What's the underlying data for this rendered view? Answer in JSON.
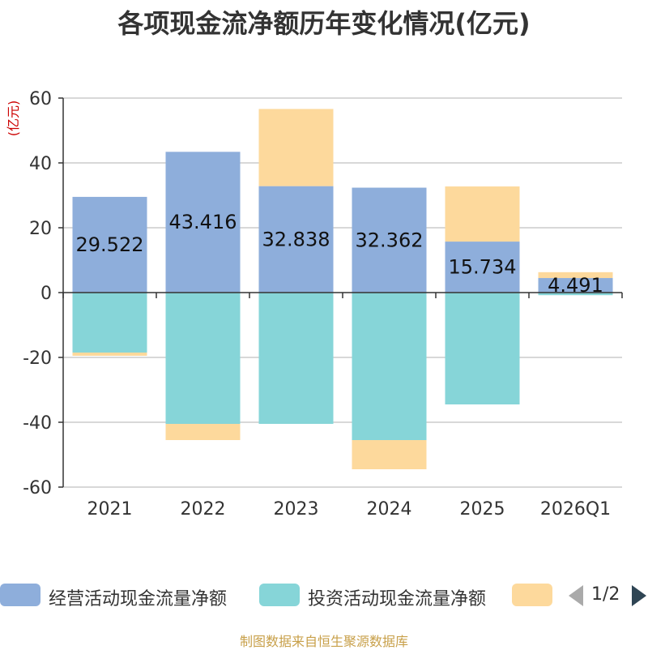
{
  "title": "各项现金流净额历年变化情况(亿元)",
  "source": "制图数据来自恒生聚源数据库",
  "colors": {
    "operating": "#8eaedb",
    "investing": "#86d5d8",
    "financing": "#fdd99c",
    "grid": "#cccccc",
    "axis": "#333333",
    "unit_label": "#cc0000"
  },
  "legend": {
    "items": [
      {
        "label": "经营活动现金流量净额",
        "color": "#8eaedb"
      },
      {
        "label": "投资活动现金流量净额",
        "color": "#86d5d8"
      },
      {
        "label": "",
        "color": "#fdd99c"
      }
    ],
    "pager": "1/2",
    "prev_icon": "triangle-left-icon",
    "next_icon": "triangle-right-icon"
  },
  "chart_data": {
    "type": "bar",
    "stacked": true,
    "title": "各项现金流净额历年变化情况(亿元)",
    "ylabel": "(亿元)",
    "ylim": [
      -60,
      60
    ],
    "yticks": [
      60,
      40,
      20,
      0,
      -20,
      -40,
      -60
    ],
    "grid": true,
    "legend_position": "bottom",
    "categories": [
      "2021",
      "2022",
      "2023",
      "2024",
      "2025",
      "2026Q1"
    ],
    "series": [
      {
        "name": "经营活动现金流量净额",
        "color": "#8eaedb",
        "values": [
          29.522,
          43.416,
          32.838,
          32.362,
          15.734,
          4.491
        ],
        "labels": [
          "29.522",
          "43.416",
          "32.838",
          "32.362",
          "15.734",
          "4.491"
        ]
      },
      {
        "name": "投资活动现金流量净额",
        "color": "#86d5d8",
        "values": [
          -18.5,
          -40.5,
          -40.5,
          -45.5,
          -34.5,
          -0.8
        ]
      },
      {
        "color": "#fdd99c",
        "values": [
          -1.0,
          -5.0,
          23.8,
          -9.0,
          17.0,
          1.8
        ]
      }
    ]
  }
}
